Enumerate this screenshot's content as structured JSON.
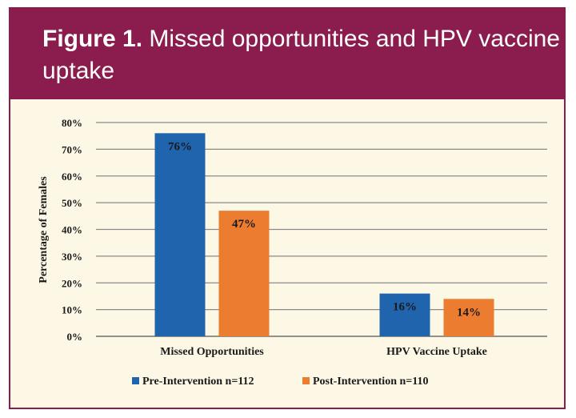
{
  "header": {
    "figure_label": "Figure 1.",
    "title": "Missed opportunities and HPV vaccine uptake"
  },
  "colors": {
    "header_bg": "#8b1d4e",
    "panel_bg": "#fdf7e6",
    "pre_intervention": "#1f64ad",
    "post_intervention": "#ec7c30"
  },
  "chart_data": {
    "type": "bar",
    "title": "",
    "xlabel": "",
    "ylabel": "Percentage of Females",
    "ylim": [
      0,
      80
    ],
    "yticks": [
      0,
      10,
      20,
      30,
      40,
      50,
      60,
      70,
      80
    ],
    "ytick_labels": [
      "0%",
      "10%",
      "20%",
      "30%",
      "40%",
      "50%",
      "60%",
      "70%",
      "80%"
    ],
    "categories": [
      "Missed Opportunities",
      "HPV Vaccine Uptake"
    ],
    "series": [
      {
        "name": "Pre-Intervention n=112",
        "values": [
          76,
          16
        ],
        "labels": [
          "76%",
          "16%"
        ]
      },
      {
        "name": "Post-Intervention n=110",
        "values": [
          47,
          14
        ],
        "labels": [
          "47%",
          "14%"
        ]
      }
    ],
    "grid": true,
    "legend_position": "bottom"
  }
}
